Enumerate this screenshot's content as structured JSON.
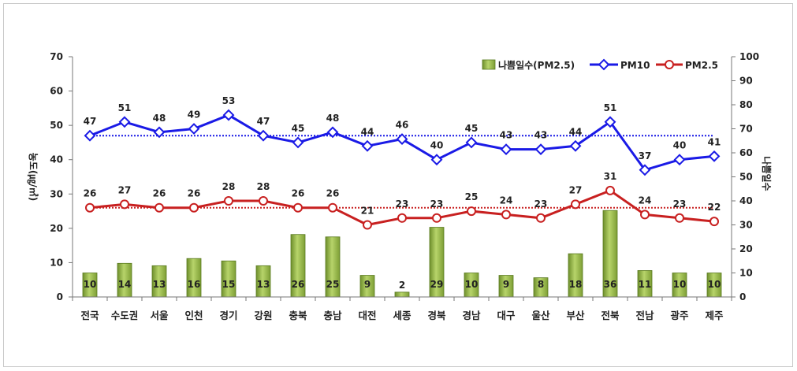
{
  "chart_data": {
    "type": "bar+line",
    "categories": [
      "전국",
      "수도권",
      "서울",
      "인천",
      "경기",
      "강원",
      "충북",
      "충남",
      "대전",
      "세종",
      "경북",
      "경남",
      "대구",
      "울산",
      "부산",
      "전북",
      "전남",
      "광주",
      "제주"
    ],
    "series": [
      {
        "name": "나쁨일수(PM2.5)",
        "type": "bar",
        "axis": "right",
        "color": "#8fb044",
        "values": [
          10,
          14,
          13,
          16,
          15,
          13,
          26,
          25,
          9,
          2,
          29,
          10,
          9,
          8,
          18,
          36,
          11,
          10,
          10
        ]
      },
      {
        "name": "PM10",
        "type": "line",
        "axis": "left",
        "color": "#1a1ae6",
        "values": [
          47,
          51,
          48,
          49,
          53,
          47,
          45,
          48,
          44,
          46,
          40,
          45,
          43,
          43,
          44,
          51,
          37,
          40,
          41
        ]
      },
      {
        "name": "PM2.5",
        "type": "line",
        "axis": "left",
        "color": "#c82020",
        "values": [
          26,
          27,
          26,
          26,
          28,
          28,
          26,
          26,
          21,
          23,
          23,
          25,
          24,
          23,
          27,
          31,
          24,
          23,
          22
        ]
      }
    ],
    "reference_lines": [
      {
        "series": "PM10",
        "value": 47,
        "style": "dotted",
        "color": "#1a1ae6"
      },
      {
        "series": "PM2.5",
        "value": 26,
        "style": "dotted",
        "color": "#c82020"
      }
    ],
    "ylabel": "농도(㎍/㎥)",
    "y2label": "나쁨일수",
    "ylim": [
      0,
      70
    ],
    "y2lim": [
      0,
      100
    ],
    "yticks": [
      0,
      10,
      20,
      30,
      40,
      50,
      60,
      70
    ],
    "y2ticks": [
      0,
      10,
      20,
      30,
      40,
      50,
      60,
      70,
      80,
      90,
      100
    ],
    "grid": false,
    "legend_position": "top-right"
  }
}
